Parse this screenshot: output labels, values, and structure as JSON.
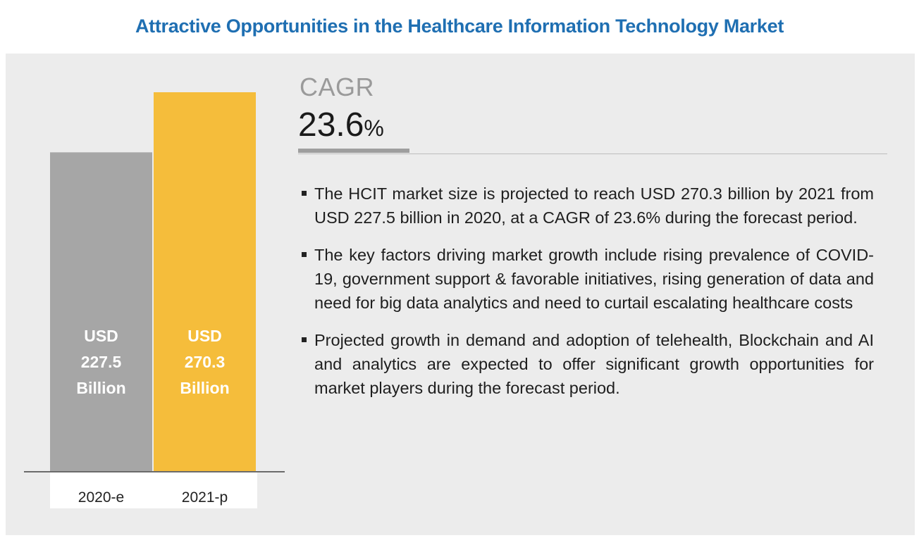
{
  "title": "Attractive Opportunities in the Healthcare Information Technology Market",
  "cagr": {
    "label": "CAGR",
    "value": "23.6",
    "unit": "%"
  },
  "bullets": [
    "The HCIT market size is projected to reach USD 270.3 billion by 2021 from USD 227.5 billion in 2020, at a CAGR of 23.6% during the forecast period.",
    "The key factors driving market growth include rising prevalence of COVID-19, government support & favorable initiatives, rising generation of data and need for big data analytics and need to curtail escalating healthcare costs",
    "Projected growth in demand and adoption of telehealth, Blockchain and AI and analytics are expected to offer significant growth opportunities for market players during the forecast period."
  ],
  "colors": {
    "title": "#1f6fb2",
    "bar_2020": "#a6a6a6",
    "bar_2021": "#f5bd3b",
    "panel_bg": "#ececec"
  },
  "chart_data": {
    "type": "bar",
    "categories": [
      "2020-e",
      "2021-p"
    ],
    "values": [
      227.5,
      270.3
    ],
    "colors": [
      "#a6a6a6",
      "#f5bd3b"
    ],
    "bar_labels": [
      [
        "USD",
        "227.5",
        "Billion"
      ],
      [
        "USD",
        "270.3",
        "Billion"
      ]
    ],
    "unit": "USD Billion",
    "grid": false,
    "legend": "none"
  }
}
